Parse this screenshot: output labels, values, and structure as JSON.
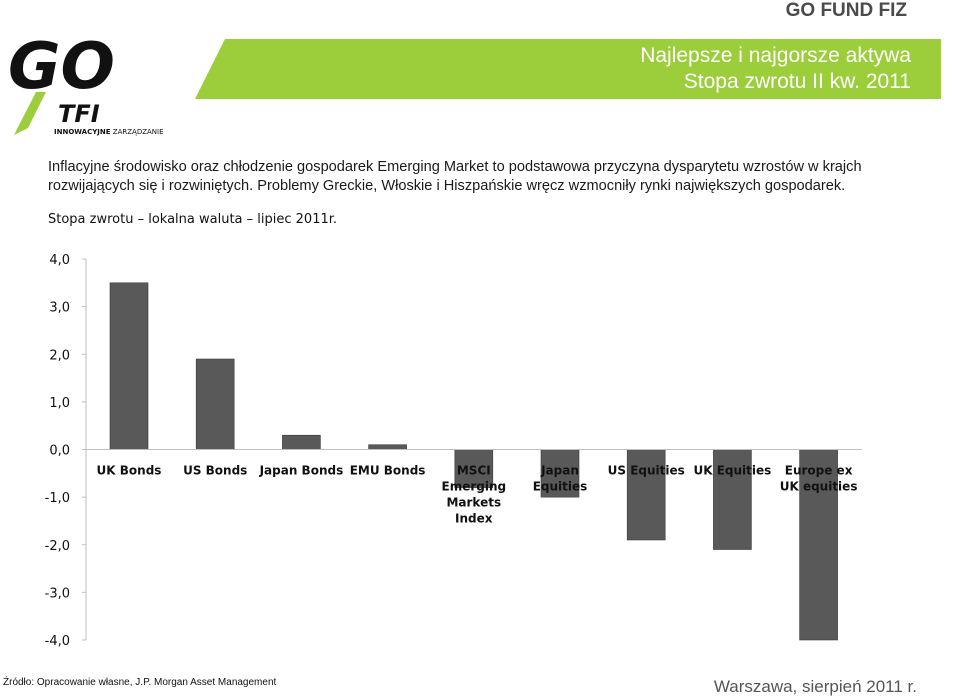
{
  "brand": "GO FUND FIZ",
  "banner": {
    "line1": "Najlepsze i najgorsze aktywa",
    "line2": "Stopa zwrotu  II kw. 2011"
  },
  "logo": {
    "main": "GO",
    "sub": "TFI",
    "tagline_bold": "INNOWACYJNE",
    "tagline": "ZARZĄDZANIE"
  },
  "intro_text": "Inflacyjne środowisko oraz chłodzenie gospodarek Emerging Market to podstawowa przyczyna dysparytetu wzrostów w krajch rozwijających się i rozwiniętych. Problemy Greckie, Włoskie i Hiszpańskie wręcz wzmocniły rynki największych gospodarek.",
  "footer": {
    "source": "Źródło: Opracowanie własne, J.P. Morgan Asset Management",
    "date": "Warszawa, sierpień 2011 r."
  },
  "colors": {
    "accent": "#9cce3b",
    "bar": "#595959"
  },
  "chart_data": {
    "type": "bar",
    "title": "Stopa zwrotu – lokalna waluta – lipiec 2011r.",
    "categories": [
      [
        "UK Bonds"
      ],
      [
        "US Bonds"
      ],
      [
        "Japan Bonds"
      ],
      [
        "EMU Bonds"
      ],
      [
        "MSCI",
        "Emerging",
        "Markets",
        "Index"
      ],
      [
        "Japan",
        "Equities"
      ],
      [
        "US Equities"
      ],
      [
        "UK Equities"
      ],
      [
        "Europe ex",
        "UK equities"
      ]
    ],
    "values": [
      3.5,
      1.9,
      0.3,
      0.1,
      -0.8,
      -1.0,
      -1.9,
      -2.1,
      -4.0
    ],
    "ylim": [
      -4.0,
      4.0
    ],
    "yticks": [
      "4,0",
      "3,0",
      "2,0",
      "1,0",
      "0,0",
      "-1,0",
      "-2,0",
      "-3,0",
      "-4,0"
    ],
    "ytick_values": [
      4,
      3,
      2,
      1,
      0,
      -1,
      -2,
      -3,
      -4
    ],
    "xlabel": "",
    "ylabel": "",
    "grid": false
  }
}
